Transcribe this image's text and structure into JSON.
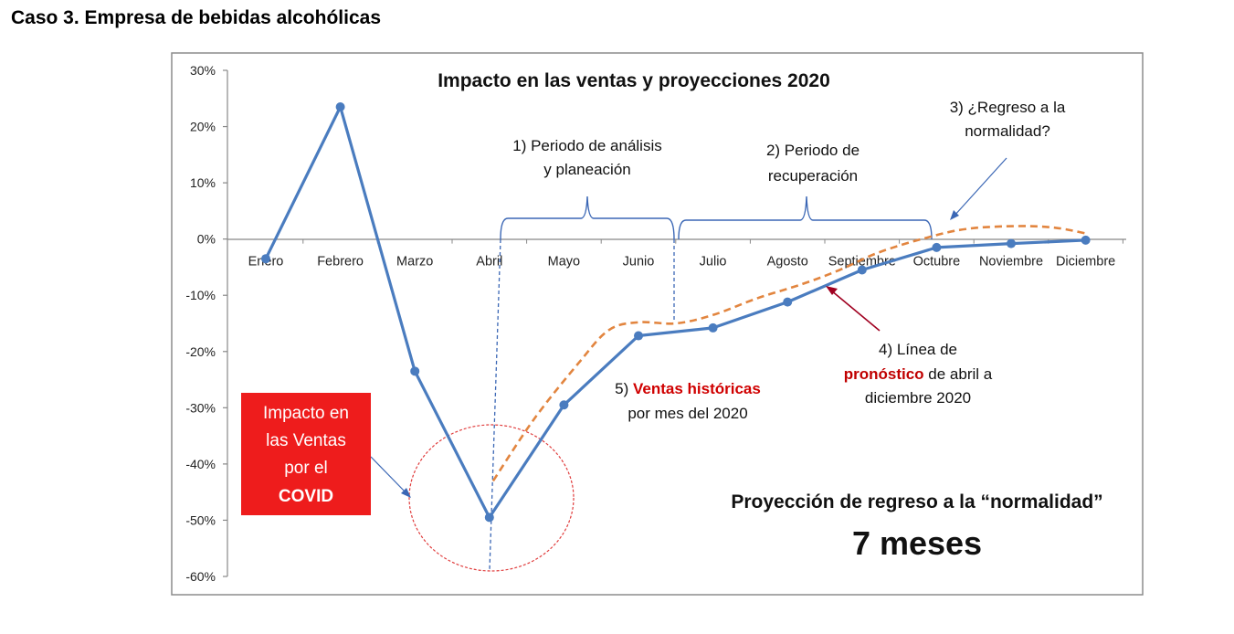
{
  "page_title": "Caso 3. Empresa de bebidas alcohólicas",
  "colors": {
    "historical_line": "#4a7cbf",
    "forecast_line": "#e2853f",
    "covid_box": "#ee1c1c",
    "circle": "#e03c3c",
    "brackets": "#3b67b5",
    "pronostico_text": "#c00000",
    "ventas_text": "#d00000",
    "arrow_dark_red": "#a00020"
  },
  "annotations": {
    "analysis_line1": "1) Periodo de análisis",
    "analysis_line2": "y planeación",
    "recovery_line1": "2) Periodo de",
    "recovery_line2": "recuperación",
    "normal_line1": "3) ¿Regreso a la",
    "normal_line2": "normalidad?",
    "forecast_pre": "4) Línea de",
    "forecast_bold": "pronóstico",
    "forecast_rest": " de abril a",
    "forecast_line3": "diciembre 2020",
    "hist_num": "5) ",
    "hist_bold": "Ventas históricas",
    "hist_line2": "por mes del 2020",
    "covid_line1": "Impacto en",
    "covid_line2": "las Ventas",
    "covid_line3": "por el",
    "covid_line4": "COVID",
    "projection_label": "Proyección de regreso a la “normalidad”",
    "projection_value": "7 meses"
  },
  "chart_data": {
    "type": "line",
    "title": "Impacto en las ventas y proyecciones 2020",
    "categories": [
      "Enero",
      "Febrero",
      "Marzo",
      "Abril",
      "Mayo",
      "Junio",
      "Julio",
      "Agosto",
      "Septiembre",
      "Octubre",
      "Noviembre",
      "Diciembre"
    ],
    "y_tick_labels": [
      "30%",
      "20%",
      "10%",
      "0%",
      "-10%",
      "-20%",
      "-30%",
      "-40%",
      "-50%",
      "-60%"
    ],
    "ylim": [
      -0.6,
      0.3
    ],
    "grid": false,
    "series": [
      {
        "name": "Ventas históricas",
        "values": [
          -0.035,
          0.235,
          -0.235,
          -0.495,
          -0.295,
          -0.172,
          -0.158,
          -0.112,
          -0.055,
          -0.015,
          -0.008,
          -0.002
        ]
      },
      {
        "name": "Línea de pronóstico",
        "style": "dashed",
        "points": [
          [
            3.05,
            -0.43
          ],
          [
            3.6,
            -0.32
          ],
          [
            4.2,
            -0.22
          ],
          [
            4.6,
            -0.162
          ],
          [
            5.0,
            -0.148
          ],
          [
            5.5,
            -0.15
          ],
          [
            6.0,
            -0.135
          ],
          [
            6.6,
            -0.105
          ],
          [
            7.2,
            -0.08
          ],
          [
            7.7,
            -0.055
          ],
          [
            8.2,
            -0.025
          ],
          [
            8.8,
            0.0
          ],
          [
            9.4,
            0.018
          ],
          [
            10.1,
            0.023
          ],
          [
            10.6,
            0.02
          ],
          [
            11.0,
            0.01
          ]
        ]
      }
    ]
  }
}
